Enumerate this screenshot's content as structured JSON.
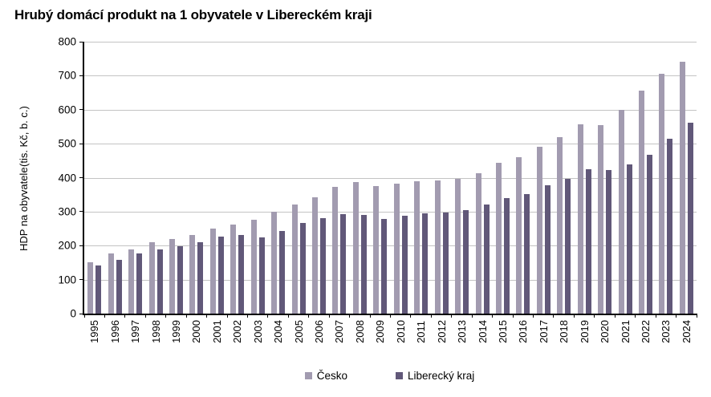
{
  "chart_data": {
    "type": "bar",
    "title": "Hrubý domácí produkt na 1 obyvatele v Libereckém kraji",
    "ylabel_line1": "HDP na obyvatele",
    "ylabel_line2": "(tis. Kč, b. c.)",
    "xlabel": "",
    "ylim": [
      0,
      800
    ],
    "yticks": [
      0,
      100,
      200,
      300,
      400,
      500,
      600,
      700,
      800
    ],
    "grid": "horizontal-gray",
    "legend_position": "bottom-center",
    "categories": [
      "1995",
      "1996",
      "1997",
      "1998",
      "1999",
      "2000",
      "2001",
      "2002",
      "2003",
      "2004",
      "2005",
      "2006",
      "2007",
      "2008",
      "2009",
      "2010",
      "2011",
      "2012",
      "2013",
      "2014",
      "2015",
      "2016",
      "2017",
      "2018",
      "2019",
      "2020",
      "2021",
      "2022",
      "2023",
      "2024"
    ],
    "series": [
      {
        "name": "Česko",
        "color": "#a29bb0",
        "values": [
          152,
          177,
          190,
          210,
          219,
          232,
          250,
          262,
          277,
          300,
          320,
          342,
          372,
          386,
          375,
          383,
          390,
          392,
          397,
          414,
          443,
          460,
          492,
          520,
          557,
          555,
          600,
          656,
          705,
          740
        ]
      },
      {
        "name": "Liberecký kraj",
        "color": "#615879",
        "values": [
          141,
          159,
          176,
          188,
          198,
          211,
          227,
          232,
          225,
          242,
          267,
          281,
          292,
          291,
          278,
          287,
          296,
          298,
          305,
          322,
          340,
          352,
          377,
          397,
          424,
          422,
          438,
          467,
          514,
          561
        ]
      }
    ]
  },
  "colors": {
    "background": "#ffffff",
    "gridline": "#c3c3c3",
    "axis": "#000000",
    "text": "#000000"
  }
}
